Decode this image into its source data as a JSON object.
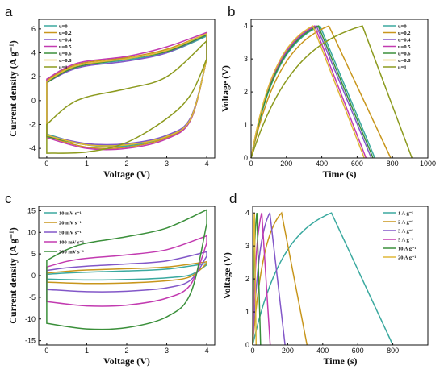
{
  "chart_data": [
    {
      "panel": "a",
      "type": "line",
      "xlabel": "Voltage (V)",
      "ylabel": "Current density (A g⁻¹)",
      "xlim": [
        -0.2,
        4.2
      ],
      "ylim": [
        -4.8,
        6.8
      ],
      "xticks": [
        0,
        1,
        2,
        3,
        4
      ],
      "yticks": [
        -4,
        -2,
        0,
        2,
        4,
        6
      ],
      "legend_position": "top-left",
      "series": [
        {
          "name": "u=0",
          "color": "#3aa99f",
          "upper": [
            [
              0,
              1.5
            ],
            [
              0.5,
              2.5
            ],
            [
              1,
              3.0
            ],
            [
              2,
              3.4
            ],
            [
              3,
              4.0
            ],
            [
              4,
              5.4
            ]
          ],
          "lower": [
            [
              0,
              -2.8
            ],
            [
              1,
              -3.7
            ],
            [
              2,
              -3.8
            ],
            [
              3,
              -3.0
            ],
            [
              3.6,
              -1.5
            ],
            [
              4,
              3.5
            ]
          ]
        },
        {
          "name": "u=0.2",
          "color": "#c8961c",
          "upper": [
            [
              0,
              1.7
            ],
            [
              0.5,
              2.7
            ],
            [
              1,
              3.2
            ],
            [
              2,
              3.6
            ],
            [
              3,
              4.3
            ],
            [
              4,
              5.6
            ]
          ],
          "lower": [
            [
              0,
              -3.0
            ],
            [
              1,
              -3.9
            ],
            [
              2,
              -3.9
            ],
            [
              3,
              -3.1
            ],
            [
              3.6,
              -1.6
            ],
            [
              4,
              3.5
            ]
          ]
        },
        {
          "name": "u=0.4",
          "color": "#8257c8",
          "upper": [
            [
              0,
              1.5
            ],
            [
              0.5,
              2.4
            ],
            [
              1,
              2.9
            ],
            [
              2,
              3.3
            ],
            [
              3,
              4.0
            ],
            [
              4,
              5.5
            ]
          ],
          "lower": [
            [
              0,
              -2.9
            ],
            [
              1,
              -3.6
            ],
            [
              2,
              -3.6
            ],
            [
              3,
              -2.9
            ],
            [
              3.6,
              -1.4
            ],
            [
              4,
              3.5
            ]
          ]
        },
        {
          "name": "u=0.5",
          "color": "#c23ab0",
          "upper": [
            [
              0,
              1.8
            ],
            [
              0.5,
              2.8
            ],
            [
              1,
              3.3
            ],
            [
              2,
              3.7
            ],
            [
              3,
              4.5
            ],
            [
              4,
              5.7
            ]
          ],
          "lower": [
            [
              0,
              -3.1
            ],
            [
              1,
              -4.0
            ],
            [
              2,
              -4.0
            ],
            [
              3,
              -3.2
            ],
            [
              3.6,
              -1.6
            ],
            [
              4,
              3.5
            ]
          ]
        },
        {
          "name": "u=0.6",
          "color": "#3a8f3a",
          "upper": [
            [
              0,
              1.5
            ],
            [
              0.5,
              2.5
            ],
            [
              1,
              3.0
            ],
            [
              2,
              3.5
            ],
            [
              3,
              4.1
            ],
            [
              4,
              5.5
            ]
          ],
          "lower": [
            [
              0,
              -3.0
            ],
            [
              1,
              -3.7
            ],
            [
              2,
              -3.7
            ],
            [
              3,
              -3.0
            ],
            [
              3.6,
              -1.5
            ],
            [
              4,
              3.5
            ]
          ]
        },
        {
          "name": "u=0.8",
          "color": "#e0b838",
          "upper": [
            [
              0,
              1.6
            ],
            [
              0.5,
              2.6
            ],
            [
              1,
              3.1
            ],
            [
              2,
              3.5
            ],
            [
              3,
              4.2
            ],
            [
              4,
              5.6
            ]
          ],
          "lower": [
            [
              0,
              -2.9
            ],
            [
              1,
              -3.7
            ],
            [
              2,
              -3.7
            ],
            [
              3,
              -3.0
            ],
            [
              3.6,
              -1.5
            ],
            [
              4,
              3.5
            ]
          ]
        },
        {
          "name": "u=1",
          "color": "#8c9a1e",
          "upper": [
            [
              0,
              -2.0
            ],
            [
              0.5,
              -0.5
            ],
            [
              1,
              0.3
            ],
            [
              2,
              1.0
            ],
            [
              3,
              2.0
            ],
            [
              4,
              5.0
            ]
          ],
          "lower": [
            [
              0,
              -4.4
            ],
            [
              1,
              -4.3
            ],
            [
              2,
              -3.5
            ],
            [
              3,
              -1.5
            ],
            [
              3.6,
              0.5
            ],
            [
              4,
              3.5
            ]
          ]
        }
      ]
    },
    {
      "panel": "b",
      "type": "line",
      "xlabel": "Time (s)",
      "ylabel": "Voltage (V)",
      "xlim": [
        0,
        1000
      ],
      "ylim": [
        0,
        4.2
      ],
      "xticks": [
        0,
        200,
        400,
        600,
        800,
        1000
      ],
      "yticks": [
        0,
        1,
        2,
        3,
        4
      ],
      "legend_position": "top-right",
      "series": [
        {
          "name": "u=0",
          "color": "#3aa99f",
          "t_peak": 390,
          "t_end": 700
        },
        {
          "name": "u=0.2",
          "color": "#c8961c",
          "t_peak": 440,
          "t_end": 790
        },
        {
          "name": "u=0.4",
          "color": "#8257c8",
          "t_peak": 370,
          "t_end": 680
        },
        {
          "name": "u=0.5",
          "color": "#c23ab0",
          "t_peak": 360,
          "t_end": 650
        },
        {
          "name": "u=0.6",
          "color": "#3a8f3a",
          "t_peak": 380,
          "t_end": 690
        },
        {
          "name": "u=0.8",
          "color": "#e0b838",
          "t_peak": 350,
          "t_end": 640
        },
        {
          "name": "u=1",
          "color": "#8c9a1e",
          "t_peak": 630,
          "t_end": 910
        }
      ]
    },
    {
      "panel": "c",
      "type": "line",
      "xlabel": "Voltage (V)",
      "ylabel": "Current density (A g⁻¹)",
      "xlim": [
        -0.2,
        4.2
      ],
      "ylim": [
        -16,
        16
      ],
      "xticks": [
        0,
        1,
        2,
        3,
        4
      ],
      "yticks": [
        -15,
        -10,
        -5,
        0,
        5,
        10,
        15
      ],
      "legend_position": "top-left",
      "series": [
        {
          "name": "10 mV s⁻¹",
          "color": "#3aa99f",
          "upper": [
            [
              0,
              0.3
            ],
            [
              0.5,
              0.6
            ],
            [
              1,
              0.8
            ],
            [
              2,
              1.1
            ],
            [
              3,
              1.5
            ],
            [
              4,
              2.8
            ]
          ],
          "lower": [
            [
              0,
              -0.8
            ],
            [
              1,
              -1.0
            ],
            [
              2,
              -0.9
            ],
            [
              3,
              -0.5
            ],
            [
              3.6,
              0.2
            ],
            [
              4,
              2.5
            ]
          ]
        },
        {
          "name": "20 mV s⁻¹",
          "color": "#c8961c",
          "upper": [
            [
              0,
              0.6
            ],
            [
              0.5,
              1.0
            ],
            [
              1,
              1.3
            ],
            [
              2,
              1.6
            ],
            [
              3,
              2.0
            ],
            [
              4,
              3.2
            ]
          ],
          "lower": [
            [
              0,
              -1.5
            ],
            [
              1,
              -1.8
            ],
            [
              2,
              -1.7
            ],
            [
              3,
              -1.2
            ],
            [
              3.6,
              -0.2
            ],
            [
              4,
              2.8
            ]
          ]
        },
        {
          "name": "50 mV s⁻¹",
          "color": "#8257c8",
          "upper": [
            [
              0,
              1.2
            ],
            [
              0.5,
              1.8
            ],
            [
              1,
              2.2
            ],
            [
              2,
              2.7
            ],
            [
              3,
              3.4
            ],
            [
              4,
              5.5
            ]
          ],
          "lower": [
            [
              0,
              -3.2
            ],
            [
              1,
              -3.7
            ],
            [
              2,
              -3.6
            ],
            [
              3,
              -2.8
            ],
            [
              3.6,
              -1.0
            ],
            [
              4,
              4.5
            ]
          ]
        },
        {
          "name": "100 mV s⁻¹",
          "color": "#c23ab0",
          "upper": [
            [
              0,
              2.0
            ],
            [
              0.5,
              3.3
            ],
            [
              1,
              4.0
            ],
            [
              2,
              4.8
            ],
            [
              3,
              6.0
            ],
            [
              4,
              9.2
            ]
          ],
          "lower": [
            [
              0,
              -6.0
            ],
            [
              1,
              -7.0
            ],
            [
              2,
              -6.8
            ],
            [
              3,
              -5.2
            ],
            [
              3.6,
              -2.0
            ],
            [
              4,
              7.5
            ]
          ]
        },
        {
          "name": "200 mV s⁻¹",
          "color": "#3a8f3a",
          "upper": [
            [
              0,
              3.5
            ],
            [
              0.5,
              6.0
            ],
            [
              1,
              7.5
            ],
            [
              2,
              9.0
            ],
            [
              3,
              11.0
            ],
            [
              4,
              15.2
            ]
          ],
          "lower": [
            [
              0,
              -11.0
            ],
            [
              1,
              -12.3
            ],
            [
              2,
              -12.0
            ],
            [
              3,
              -9.5
            ],
            [
              3.6,
              -4.0
            ],
            [
              4,
              12.0
            ]
          ]
        }
      ]
    },
    {
      "panel": "d",
      "type": "line",
      "xlabel": "Time (s)",
      "ylabel": "Voltage (V)",
      "xlim": [
        0,
        1000
      ],
      "ylim": [
        0,
        4.2
      ],
      "xticks": [
        0,
        200,
        400,
        600,
        800
      ],
      "yticks": [
        0,
        1,
        2,
        3,
        4
      ],
      "legend_position": "top-right",
      "series": [
        {
          "name": "1 A g⁻¹",
          "color": "#3aa99f",
          "t_peak": 450,
          "t_end": 800
        },
        {
          "name": "2 A g⁻¹",
          "color": "#c8961c",
          "t_peak": 165,
          "t_end": 310
        },
        {
          "name": "3 A g⁻¹",
          "color": "#8257c8",
          "t_peak": 98,
          "t_end": 185
        },
        {
          "name": "5 A g⁻¹",
          "color": "#c23ab0",
          "t_peak": 52,
          "t_end": 100
        },
        {
          "name": "10 A g⁻¹",
          "color": "#3a8f3a",
          "t_peak": 24,
          "t_end": 45
        },
        {
          "name": "20 A g⁻¹",
          "color": "#e0b838",
          "t_peak": 10,
          "t_end": 20
        }
      ]
    }
  ]
}
